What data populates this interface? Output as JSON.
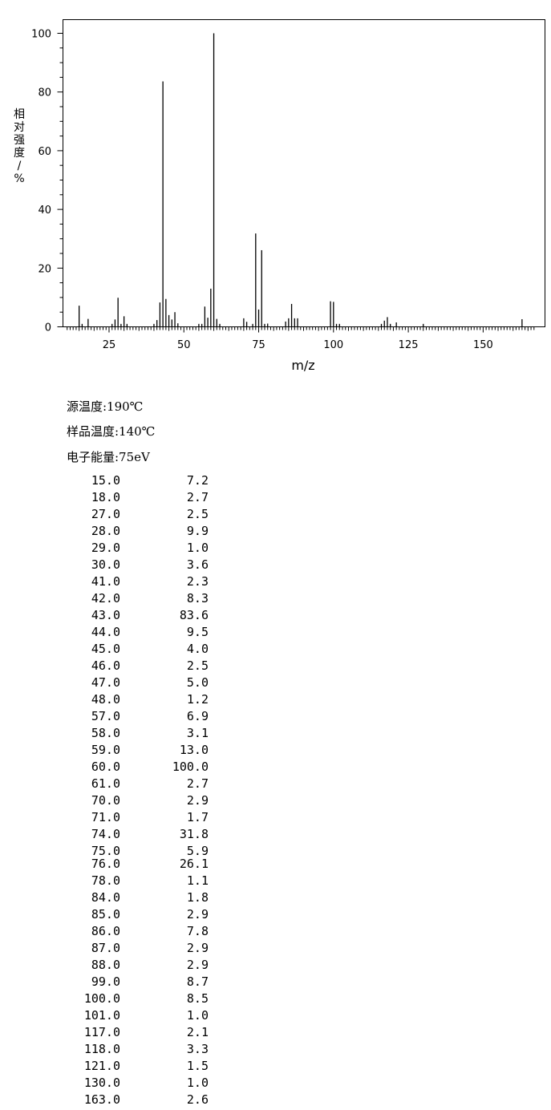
{
  "chart_data": {
    "type": "bar",
    "ylabel_chars": [
      "相",
      "对",
      "强",
      "度",
      "/",
      "%"
    ],
    "xlabel": "m/z",
    "xlim": [
      10,
      170
    ],
    "ylim": [
      0,
      100
    ],
    "xticks": [
      25,
      50,
      75,
      100,
      125,
      150
    ],
    "yticks": [
      0,
      20,
      40,
      60,
      80,
      100
    ],
    "bars": [
      {
        "x": 15,
        "y": 7.2
      },
      {
        "x": 16,
        "y": 1.0
      },
      {
        "x": 18,
        "y": 2.7
      },
      {
        "x": 26,
        "y": 1.0
      },
      {
        "x": 27,
        "y": 2.5
      },
      {
        "x": 28,
        "y": 9.9
      },
      {
        "x": 29,
        "y": 1.0
      },
      {
        "x": 30,
        "y": 3.6
      },
      {
        "x": 31,
        "y": 1.0
      },
      {
        "x": 40,
        "y": 1.0
      },
      {
        "x": 41,
        "y": 2.3
      },
      {
        "x": 42,
        "y": 8.3
      },
      {
        "x": 43,
        "y": 83.6
      },
      {
        "x": 44,
        "y": 9.5
      },
      {
        "x": 45,
        "y": 4.0
      },
      {
        "x": 46,
        "y": 2.5
      },
      {
        "x": 47,
        "y": 5.0
      },
      {
        "x": 48,
        "y": 1.2
      },
      {
        "x": 55,
        "y": 1.0
      },
      {
        "x": 56,
        "y": 1.0
      },
      {
        "x": 57,
        "y": 6.9
      },
      {
        "x": 58,
        "y": 3.1
      },
      {
        "x": 59,
        "y": 13.0
      },
      {
        "x": 60,
        "y": 100.0
      },
      {
        "x": 61,
        "y": 2.7
      },
      {
        "x": 62,
        "y": 1.0
      },
      {
        "x": 70,
        "y": 2.9
      },
      {
        "x": 71,
        "y": 1.7
      },
      {
        "x": 73,
        "y": 1.0
      },
      {
        "x": 74,
        "y": 31.8
      },
      {
        "x": 75,
        "y": 5.9
      },
      {
        "x": 76,
        "y": 26.1
      },
      {
        "x": 77,
        "y": 1.0
      },
      {
        "x": 78,
        "y": 1.1
      },
      {
        "x": 84,
        "y": 1.8
      },
      {
        "x": 85,
        "y": 2.9
      },
      {
        "x": 86,
        "y": 7.8
      },
      {
        "x": 87,
        "y": 2.9
      },
      {
        "x": 88,
        "y": 2.9
      },
      {
        "x": 99,
        "y": 8.7
      },
      {
        "x": 100,
        "y": 8.5
      },
      {
        "x": 101,
        "y": 1.0
      },
      {
        "x": 102,
        "y": 1.0
      },
      {
        "x": 116,
        "y": 1.0
      },
      {
        "x": 117,
        "y": 2.1
      },
      {
        "x": 118,
        "y": 3.3
      },
      {
        "x": 119,
        "y": 1.0
      },
      {
        "x": 121,
        "y": 1.5
      },
      {
        "x": 130,
        "y": 1.0
      },
      {
        "x": 163,
        "y": 2.6
      }
    ],
    "color": "#000000"
  },
  "conditions": {
    "source_temp": "源温度:190℃",
    "sample_temp": "样品温度:140℃",
    "electron_energy": "电子能量:75eV"
  },
  "peaks": [
    {
      "mz": "15.0",
      "ab": "7.2"
    },
    {
      "mz": "18.0",
      "ab": "2.7"
    },
    {
      "mz": "27.0",
      "ab": "2.5"
    },
    {
      "mz": "28.0",
      "ab": "9.9"
    },
    {
      "mz": "29.0",
      "ab": "1.0"
    },
    {
      "mz": "30.0",
      "ab": "3.6"
    },
    {
      "mz": "41.0",
      "ab": "2.3"
    },
    {
      "mz": "42.0",
      "ab": "8.3"
    },
    {
      "mz": "43.0",
      "ab": "83.6"
    },
    {
      "mz": "44.0",
      "ab": "9.5"
    },
    {
      "mz": "45.0",
      "ab": "4.0"
    },
    {
      "mz": "46.0",
      "ab": "2.5"
    },
    {
      "mz": "47.0",
      "ab": "5.0"
    },
    {
      "mz": "48.0",
      "ab": "1.2"
    },
    {
      "mz": "57.0",
      "ab": "6.9"
    },
    {
      "mz": "58.0",
      "ab": "3.1"
    },
    {
      "mz": "59.0",
      "ab": "13.0"
    },
    {
      "mz": "60.0",
      "ab": "100.0"
    },
    {
      "mz": "61.0",
      "ab": "2.7"
    },
    {
      "mz": "70.0",
      "ab": "2.9"
    },
    {
      "mz": "71.0",
      "ab": "1.7"
    },
    {
      "mz": "74.0",
      "ab": "31.8"
    },
    {
      "mz": "75.0",
      "ab": "5.9"
    },
    {
      "mz": "76.0",
      "ab": "26.1"
    },
    {
      "mz": "78.0",
      "ab": "1.1"
    },
    {
      "mz": "84.0",
      "ab": "1.8"
    },
    {
      "mz": "85.0",
      "ab": "2.9"
    },
    {
      "mz": "86.0",
      "ab": "7.8"
    },
    {
      "mz": "87.0",
      "ab": "2.9"
    },
    {
      "mz": "88.0",
      "ab": "2.9"
    },
    {
      "mz": "99.0",
      "ab": "8.7"
    },
    {
      "mz": "100.0",
      "ab": "8.5"
    },
    {
      "mz": "101.0",
      "ab": "1.0"
    },
    {
      "mz": "117.0",
      "ab": "2.1"
    },
    {
      "mz": "118.0",
      "ab": "3.3"
    },
    {
      "mz": "121.0",
      "ab": "1.5"
    },
    {
      "mz": "130.0",
      "ab": "1.0"
    },
    {
      "mz": "163.0",
      "ab": "2.6"
    }
  ]
}
